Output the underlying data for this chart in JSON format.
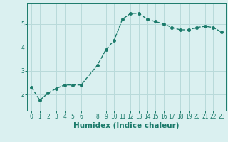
{
  "x": [
    0,
    1,
    2,
    3,
    4,
    5,
    6,
    8,
    9,
    10,
    11,
    12,
    13,
    14,
    15,
    16,
    17,
    18,
    19,
    20,
    21,
    22,
    23
  ],
  "y": [
    2.3,
    1.75,
    2.05,
    2.25,
    2.4,
    2.4,
    2.4,
    3.25,
    3.9,
    4.3,
    5.2,
    5.45,
    5.45,
    5.2,
    5.1,
    5.0,
    4.85,
    4.75,
    4.75,
    4.85,
    4.9,
    4.85,
    4.65
  ],
  "line_color": "#1a7a6a",
  "marker_color": "#1a7a6a",
  "bg_color": "#daf0f0",
  "grid_color": "#b8dada",
  "xlabel": "Humidex (Indice chaleur)",
  "ylabel": "",
  "xlim": [
    -0.5,
    23.5
  ],
  "ylim": [
    1.3,
    5.9
  ],
  "yticks": [
    2,
    3,
    4,
    5
  ],
  "xticks": [
    0,
    1,
    2,
    3,
    4,
    5,
    6,
    8,
    9,
    10,
    11,
    12,
    13,
    14,
    15,
    16,
    17,
    18,
    19,
    20,
    21,
    22,
    23
  ],
  "tick_label_fontsize": 5.5,
  "xlabel_fontsize": 7.5,
  "linewidth": 1.0,
  "markersize": 2.5
}
